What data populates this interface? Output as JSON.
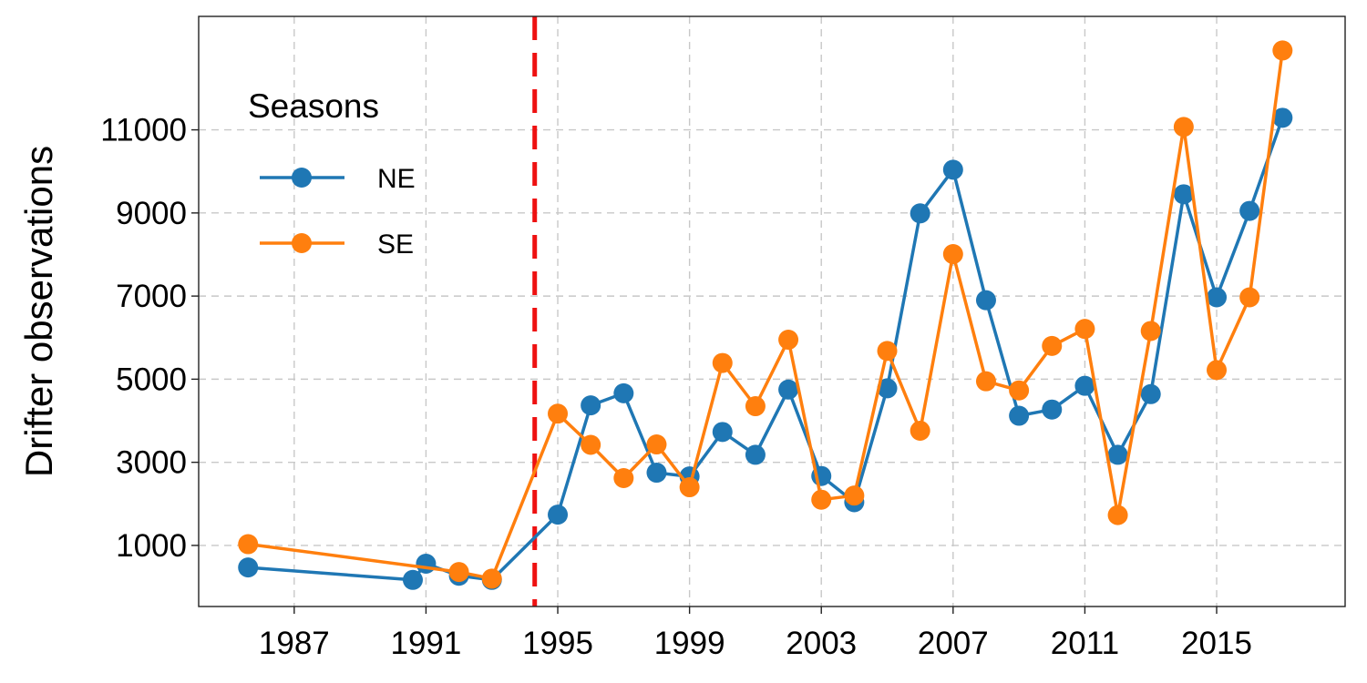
{
  "chart_data": {
    "type": "line",
    "title": "",
    "xlabel": "",
    "ylabel": "Drifter observations",
    "xlim": [
      1984.1,
      2018.9
    ],
    "ylim": [
      -470,
      13730
    ],
    "x_ticks": [
      1987,
      1991,
      1995,
      1999,
      2003,
      2007,
      2011,
      2015
    ],
    "y_ticks": [
      1000,
      3000,
      5000,
      7000,
      9000,
      11000
    ],
    "grid": true,
    "legend": {
      "title": "Seasons",
      "placement": "top-left"
    },
    "reference_line": {
      "x": 1994.3,
      "color": "#ee1111",
      "style": "dashed"
    },
    "series": [
      {
        "name": "NE",
        "color": "#1f77b4",
        "x": [
          1985.6,
          1990.6,
          1991,
          1992,
          1993,
          1995,
          1996,
          1997,
          1998,
          1999,
          2000,
          2001,
          2002,
          2003,
          2004,
          2005,
          2006,
          2007,
          2008,
          2009,
          2010,
          2011,
          2012,
          2013,
          2014,
          2015,
          2016,
          2017
        ],
        "values": [
          470,
          170,
          560,
          270,
          170,
          1740,
          4370,
          4660,
          2750,
          2660,
          3730,
          3180,
          4750,
          2670,
          2040,
          4780,
          8990,
          10040,
          6900,
          4120,
          4270,
          4840,
          3180,
          4640,
          9450,
          6970,
          9050,
          11290
        ]
      },
      {
        "name": "SE",
        "color": "#ff7f0e",
        "x": [
          1985.6,
          1992,
          1993,
          1995,
          1996,
          1997,
          1998,
          1999,
          2000,
          2001,
          2002,
          2003,
          2004,
          2005,
          2006,
          2007,
          2008,
          2009,
          2010,
          2011,
          2012,
          2013,
          2014,
          2015,
          2016,
          2017
        ],
        "values": [
          1030,
          360,
          200,
          4170,
          3420,
          2620,
          3430,
          2400,
          5390,
          4350,
          5950,
          2100,
          2200,
          5680,
          3760,
          8010,
          4950,
          4730,
          5800,
          6210,
          1730,
          6160,
          11070,
          5220,
          6970,
          12910
        ]
      }
    ]
  }
}
